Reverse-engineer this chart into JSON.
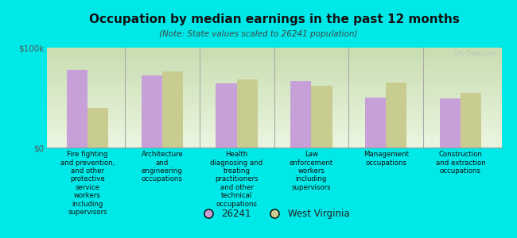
{
  "title": "Occupation by median earnings in the past 12 months",
  "subtitle": "(Note: State values scaled to 26241 population)",
  "background_color": "#00e8e8",
  "plot_bg_color_top": "#c8ddb0",
  "plot_bg_color_bottom": "#eaf5e0",
  "bar_color_26241": "#c8a0d8",
  "bar_color_wv": "#c8cc90",
  "categories": [
    "Fire fighting\nand prevention,\nand other\nprotective\nservice\nworkers\nincluding\nsupervisors",
    "Architecture\nand\nengineering\noccupations",
    "Health\ndiagnosing and\ntreating\npractitioners\nand other\ntechnical\noccupations",
    "Law\nenforcement\nworkers\nincluding\nsupervisors",
    "Management\noccupations",
    "Construction\nand extraction\noccupations"
  ],
  "values_26241": [
    78000,
    72000,
    64000,
    67000,
    50000,
    49000
  ],
  "values_wv": [
    40000,
    76000,
    68000,
    62000,
    65000,
    55000
  ],
  "ylim": [
    0,
    100000
  ],
  "ytick_labels": [
    "$0",
    "$100k"
  ],
  "legend_label_26241": "26241",
  "legend_label_wv": "West Virginia",
  "watermark": "City-Data.com"
}
